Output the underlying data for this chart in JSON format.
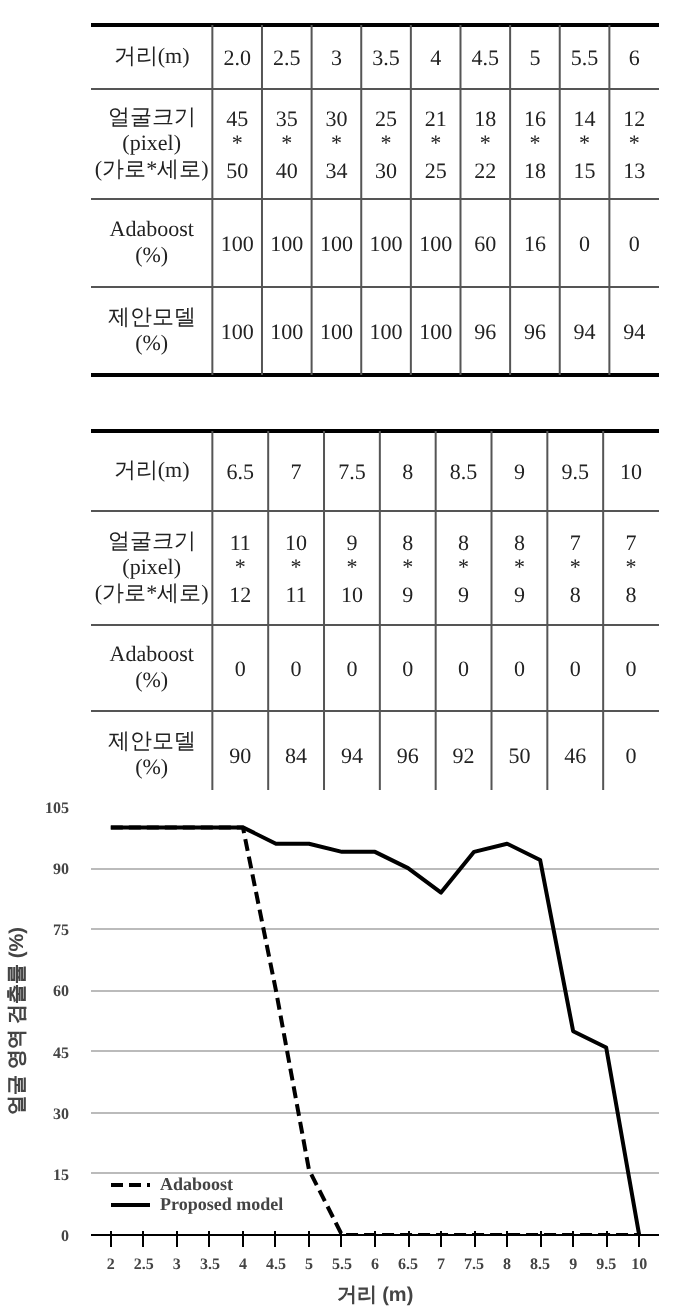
{
  "chart_data": {
    "type": "line",
    "xlabel": "거리 (m)",
    "ylabel": "얼굴 영역 검출률 (%)",
    "x": [
      2,
      2.5,
      3,
      3.5,
      4,
      4.5,
      5,
      5.5,
      6,
      6.5,
      7,
      7.5,
      8,
      8.5,
      9,
      9.5,
      10
    ],
    "series": [
      {
        "name": "Adaboost",
        "color": "#000000",
        "line_style": "dashed",
        "values": [
          100,
          100,
          100,
          100,
          100,
          60,
          16,
          0,
          0,
          0,
          0,
          0,
          0,
          0,
          0,
          0,
          0
        ]
      },
      {
        "name": "Proposed model",
        "color": "#000000",
        "line_style": "solid",
        "values": [
          100,
          100,
          100,
          100,
          100,
          96,
          96,
          94,
          94,
          90,
          84,
          94,
          96,
          92,
          50,
          46,
          0
        ]
      }
    ],
    "xlim": [
      1.7,
      10.3
    ],
    "ylim": [
      0,
      105
    ],
    "xticks": [
      2,
      2.5,
      3,
      3.5,
      4,
      4.5,
      5,
      5.5,
      6,
      6.5,
      7,
      7.5,
      8,
      8.5,
      9,
      9.5,
      10
    ],
    "yticks": [
      0,
      15,
      30,
      45,
      60,
      75,
      90,
      105
    ],
    "grid": "y",
    "legend": "bottom left",
    "marker": "none",
    "annotations": [
      "거리(m)",
      "얼굴크기\n(pixel)\n(가로*세로)",
      "Adaboost\n(%)",
      "제안모델\n(%)",
      "2.0",
      "2.5",
      "3",
      "3.5",
      "4",
      "4.5",
      "5",
      "5.5",
      "6",
      "6.5",
      "7",
      "7.5",
      "8",
      "8.5",
      "9",
      "9.5",
      "10",
      "45\n*\n50",
      "35\n*\n40",
      "30\n*\n34",
      "25\n*\n30",
      "21\n*\n25",
      "18\n*\n22",
      "16\n*\n18",
      "14\n*\n15",
      "12\n*\n13",
      "11\n*\n12",
      "10\n*\n11",
      "9\n*\n10",
      "8\n*\n9",
      "8\n*\n9",
      "8\n*\n9",
      "7\n*\n8",
      "7\n*\n8",
      "100",
      "100",
      "100",
      "100",
      "100",
      "60",
      "16",
      "0",
      "0",
      "0",
      "0",
      "0",
      "0",
      "0",
      "0",
      "0",
      "0",
      "100",
      "100",
      "100",
      "100",
      "100",
      "96",
      "96",
      "94",
      "94",
      "90",
      "84",
      "94",
      "96",
      "92",
      "50",
      "46",
      "0"
    ]
  }
}
